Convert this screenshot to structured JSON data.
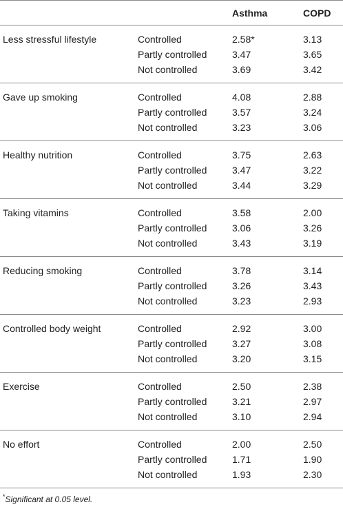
{
  "table": {
    "headers": [
      "",
      "",
      "Asthma",
      "COPD"
    ],
    "groups": [
      {
        "factor": "Less stressful lifestyle",
        "rows": [
          {
            "level": "Controlled",
            "asthma": "2.58*",
            "copd": "3.13"
          },
          {
            "level": "Partly controlled",
            "asthma": "3.47",
            "copd": "3.65"
          },
          {
            "level": "Not controlled",
            "asthma": "3.69",
            "copd": "3.42"
          }
        ]
      },
      {
        "factor": "Gave up smoking",
        "rows": [
          {
            "level": "Controlled",
            "asthma": "4.08",
            "copd": "2.88"
          },
          {
            "level": "Partly controlled",
            "asthma": "3.57",
            "copd": "3.24"
          },
          {
            "level": "Not controlled",
            "asthma": "3.23",
            "copd": "3.06"
          }
        ]
      },
      {
        "factor": "Healthy nutrition",
        "rows": [
          {
            "level": "Controlled",
            "asthma": "3.75",
            "copd": "2.63"
          },
          {
            "level": "Partly controlled",
            "asthma": "3.47",
            "copd": "3.22"
          },
          {
            "level": "Not controlled",
            "asthma": "3.44",
            "copd": "3.29"
          }
        ]
      },
      {
        "factor": "Taking vitamins",
        "rows": [
          {
            "level": "Controlled",
            "asthma": "3.58",
            "copd": "2.00"
          },
          {
            "level": "Partly controlled",
            "asthma": "3.06",
            "copd": "3.26"
          },
          {
            "level": "Not controlled",
            "asthma": "3.43",
            "copd": "3.19"
          }
        ]
      },
      {
        "factor": "Reducing smoking",
        "rows": [
          {
            "level": "Controlled",
            "asthma": "3.78",
            "copd": "3.14"
          },
          {
            "level": "Partly controlled",
            "asthma": "3.26",
            "copd": "3.43"
          },
          {
            "level": "Not controlled",
            "asthma": "3.23",
            "copd": "2.93"
          }
        ]
      },
      {
        "factor": "Controlled body weight",
        "rows": [
          {
            "level": "Controlled",
            "asthma": "2.92",
            "copd": "3.00"
          },
          {
            "level": "Partly controlled",
            "asthma": "3.27",
            "copd": "3.08"
          },
          {
            "level": "Not controlled",
            "asthma": "3.20",
            "copd": "3.15"
          }
        ]
      },
      {
        "factor": "Exercise",
        "rows": [
          {
            "level": "Controlled",
            "asthma": "2.50",
            "copd": "2.38"
          },
          {
            "level": "Partly controlled",
            "asthma": "3.21",
            "copd": "2.97"
          },
          {
            "level": "Not controlled",
            "asthma": "3.10",
            "copd": "2.94"
          }
        ]
      },
      {
        "factor": "No effort",
        "rows": [
          {
            "level": "Controlled",
            "asthma": "2.00",
            "copd": "2.50"
          },
          {
            "level": "Partly controlled",
            "asthma": "1.71",
            "copd": "1.90"
          },
          {
            "level": "Not controlled",
            "asthma": "1.93",
            "copd": "2.30"
          }
        ]
      }
    ]
  },
  "footnote": {
    "marker": "*",
    "text": "Significant at 0.05 level."
  }
}
